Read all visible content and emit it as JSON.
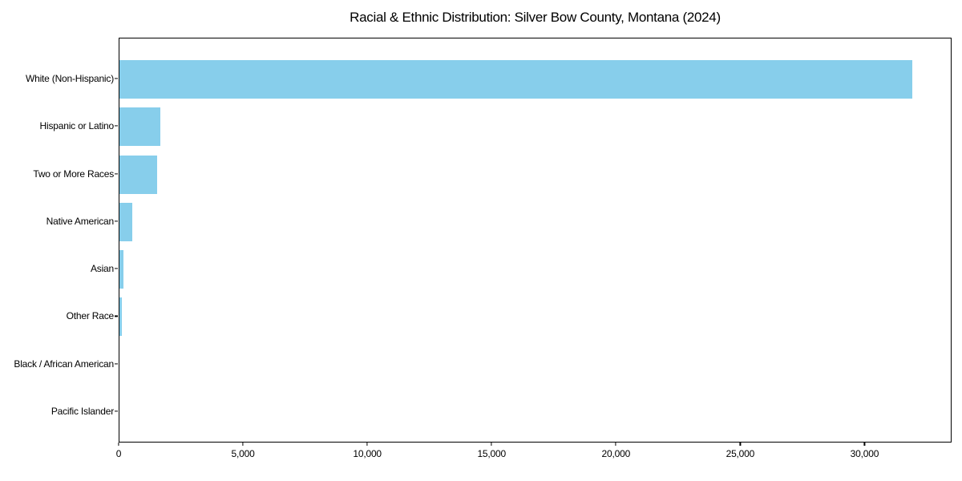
{
  "chart_data": {
    "type": "bar",
    "orientation": "horizontal",
    "title": "Racial & Ethnic Distribution: Silver Bow County, Montana (2024)",
    "categories": [
      "White (Non-Hispanic)",
      "Hispanic or Latino",
      "Two or More Races",
      "Native American",
      "Asian",
      "Other Race",
      "Black / African American",
      "Pacific Islander"
    ],
    "values": [
      31900,
      1650,
      1500,
      500,
      170,
      100,
      0,
      0
    ],
    "xlabel": "",
    "ylabel": "",
    "xlim": [
      0,
      33500
    ],
    "x_ticks": [
      0,
      5000,
      10000,
      15000,
      20000,
      25000,
      30000
    ],
    "x_tick_labels": [
      "0",
      "5,000",
      "10,000",
      "15,000",
      "20,000",
      "25,000",
      "30,000"
    ],
    "bar_color": "#87CEEB",
    "background_color": "#ffffff",
    "text_color": "#000000",
    "grid": false,
    "legend_position": "none"
  }
}
